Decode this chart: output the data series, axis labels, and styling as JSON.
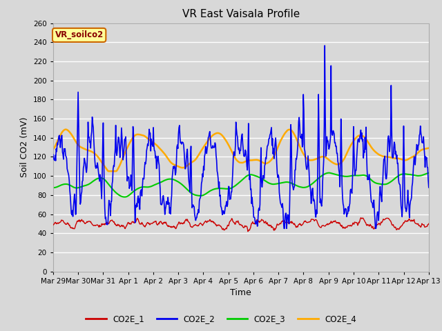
{
  "title": "VR East Vaisala Profile",
  "xlabel": "Time",
  "ylabel": "Soil CO2 (mV)",
  "annotation": "VR_soilco2",
  "ylim": [
    0,
    260
  ],
  "yticks": [
    0,
    20,
    40,
    60,
    80,
    100,
    120,
    140,
    160,
    180,
    200,
    220,
    240,
    260
  ],
  "background_color": "#d8d8d8",
  "plot_background": "#d8d8d8",
  "grid_color": "#ffffff",
  "line_colors": {
    "CO2E_1": "#cc0000",
    "CO2E_2": "#0000ee",
    "CO2E_3": "#00cc00",
    "CO2E_4": "#ffaa00"
  },
  "line_widths": {
    "CO2E_1": 1.0,
    "CO2E_2": 1.2,
    "CO2E_3": 1.5,
    "CO2E_4": 1.8
  },
  "date_labels": [
    "Mar 29",
    "Mar 30",
    "Mar 31",
    "Apr 1",
    "Apr 2",
    "Apr 3",
    "Apr 4",
    "Apr 5",
    "Apr 6",
    "Apr 7",
    "Apr 8",
    "Apr 9",
    "Apr 10",
    "Apr 11",
    "Apr 12",
    "Apr 13"
  ],
  "annotation_box_facecolor": "#ffff99",
  "annotation_box_edgecolor": "#cc6600",
  "annotation_text_color": "#880000"
}
